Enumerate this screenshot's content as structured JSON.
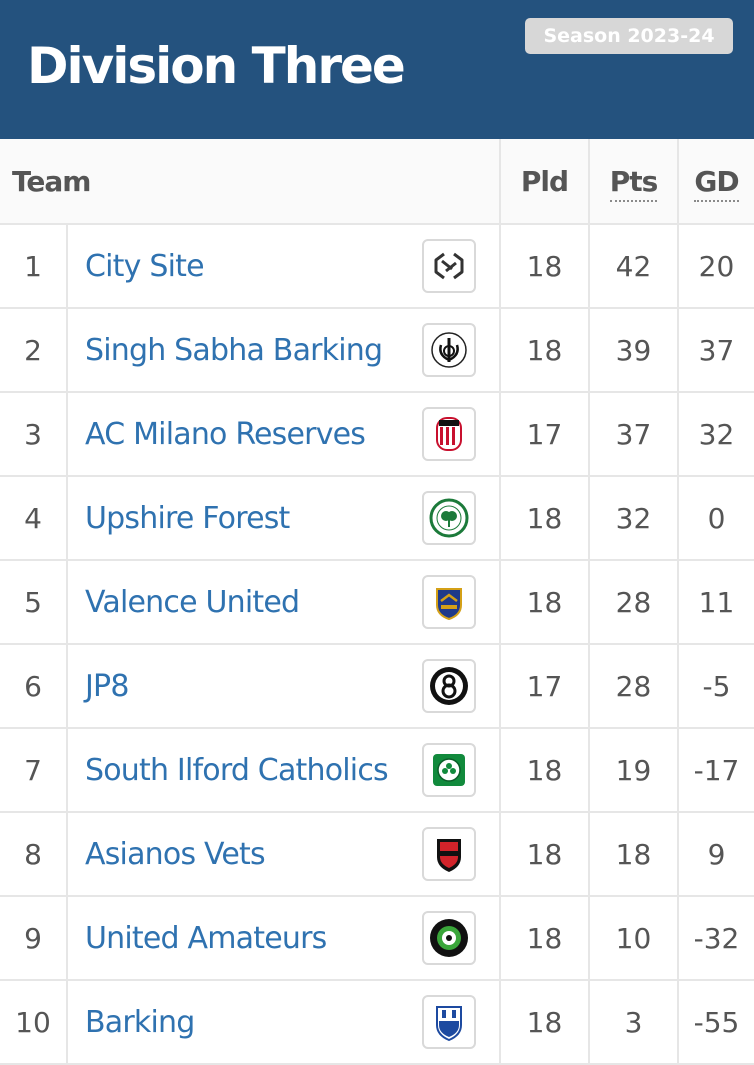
{
  "header": {
    "title": "Division Three",
    "season_badge": "Season 2023-24",
    "background_color": "#24527e"
  },
  "table": {
    "columns": {
      "team": "Team",
      "played": "Pld",
      "points": "Pts",
      "goal_difference": "GD"
    },
    "link_color": "#2f72b0",
    "rows": [
      {
        "position": "1",
        "team": "City Site",
        "crest_icon": "city-site-crest-icon",
        "played": "18",
        "points": "42",
        "gd": "20"
      },
      {
        "position": "2",
        "team": "Singh Sabha Barking",
        "crest_icon": "singh-sabha-barking-crest-icon",
        "played": "18",
        "points": "39",
        "gd": "37"
      },
      {
        "position": "3",
        "team": "AC Milano Reserves",
        "crest_icon": "ac-milano-crest-icon",
        "played": "17",
        "points": "37",
        "gd": "32"
      },
      {
        "position": "4",
        "team": "Upshire Forest",
        "crest_icon": "upshire-forest-crest-icon",
        "played": "18",
        "points": "32",
        "gd": "0"
      },
      {
        "position": "5",
        "team": "Valence United",
        "crest_icon": "valence-united-crest-icon",
        "played": "18",
        "points": "28",
        "gd": "11"
      },
      {
        "position": "6",
        "team": "JP8",
        "crest_icon": "jp8-crest-icon",
        "played": "17",
        "points": "28",
        "gd": "-5"
      },
      {
        "position": "7",
        "team": "South Ilford Catholics",
        "crest_icon": "south-ilford-catholics-crest-icon",
        "played": "18",
        "points": "19",
        "gd": "-17"
      },
      {
        "position": "8",
        "team": "Asianos Vets",
        "crest_icon": "asianos-vets-crest-icon",
        "played": "18",
        "points": "18",
        "gd": "9"
      },
      {
        "position": "9",
        "team": "United Amateurs",
        "crest_icon": "united-amateurs-crest-icon",
        "played": "18",
        "points": "10",
        "gd": "-32"
      },
      {
        "position": "10",
        "team": "Barking",
        "crest_icon": "barking-crest-icon",
        "played": "18",
        "points": "3",
        "gd": "-55"
      }
    ]
  }
}
